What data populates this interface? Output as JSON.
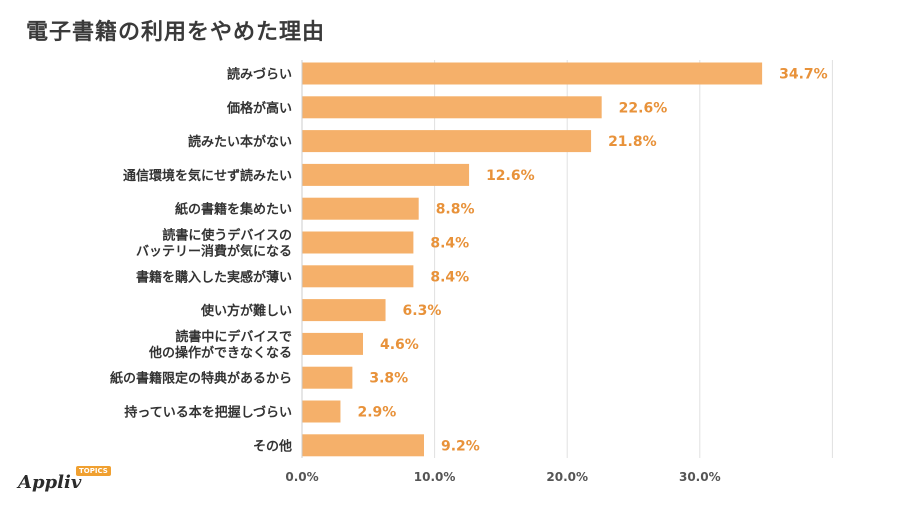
{
  "title": "電子書籍の利用をやめた理由",
  "logo": {
    "name": "Appliv",
    "badge": "TOPICS"
  },
  "chart_data": {
    "type": "bar",
    "orientation": "horizontal",
    "title": "電子書籍の利用をやめた理由",
    "categories": [
      [
        "読みづらい"
      ],
      [
        "価格が高い"
      ],
      [
        "読みたい本がない"
      ],
      [
        "通信環境を気にせず読みたい"
      ],
      [
        "紙の書籍を集めたい"
      ],
      [
        "読書に使うデバイスの",
        "バッテリー消費が気になる"
      ],
      [
        "書籍を購入した実感が薄い"
      ],
      [
        "使い方が難しい"
      ],
      [
        "読書中にデバイスで",
        "他の操作ができなくなる"
      ],
      [
        "紙の書籍限定の特典があるから"
      ],
      [
        "持っている本を把握しづらい"
      ],
      [
        "その他"
      ]
    ],
    "values": [
      34.7,
      22.6,
      21.8,
      12.6,
      8.8,
      8.4,
      8.4,
      6.3,
      4.6,
      3.8,
      2.9,
      9.2
    ],
    "value_labels": [
      "34.7%",
      "22.6%",
      "21.8%",
      "12.6%",
      "8.8%",
      "8.4%",
      "8.4%",
      "6.3%",
      "4.6%",
      "3.8%",
      "2.9%",
      "9.2%"
    ],
    "x_ticks": [
      0,
      10,
      20,
      30
    ],
    "x_tick_labels": [
      "0.0%",
      "10.0%",
      "20.0%",
      "30.0%"
    ],
    "xlim": [
      0,
      40
    ],
    "grid": true,
    "colors": {
      "bar": "#f5b06a",
      "value_label": "#e8923a",
      "grid": "#e0e0e0"
    }
  }
}
